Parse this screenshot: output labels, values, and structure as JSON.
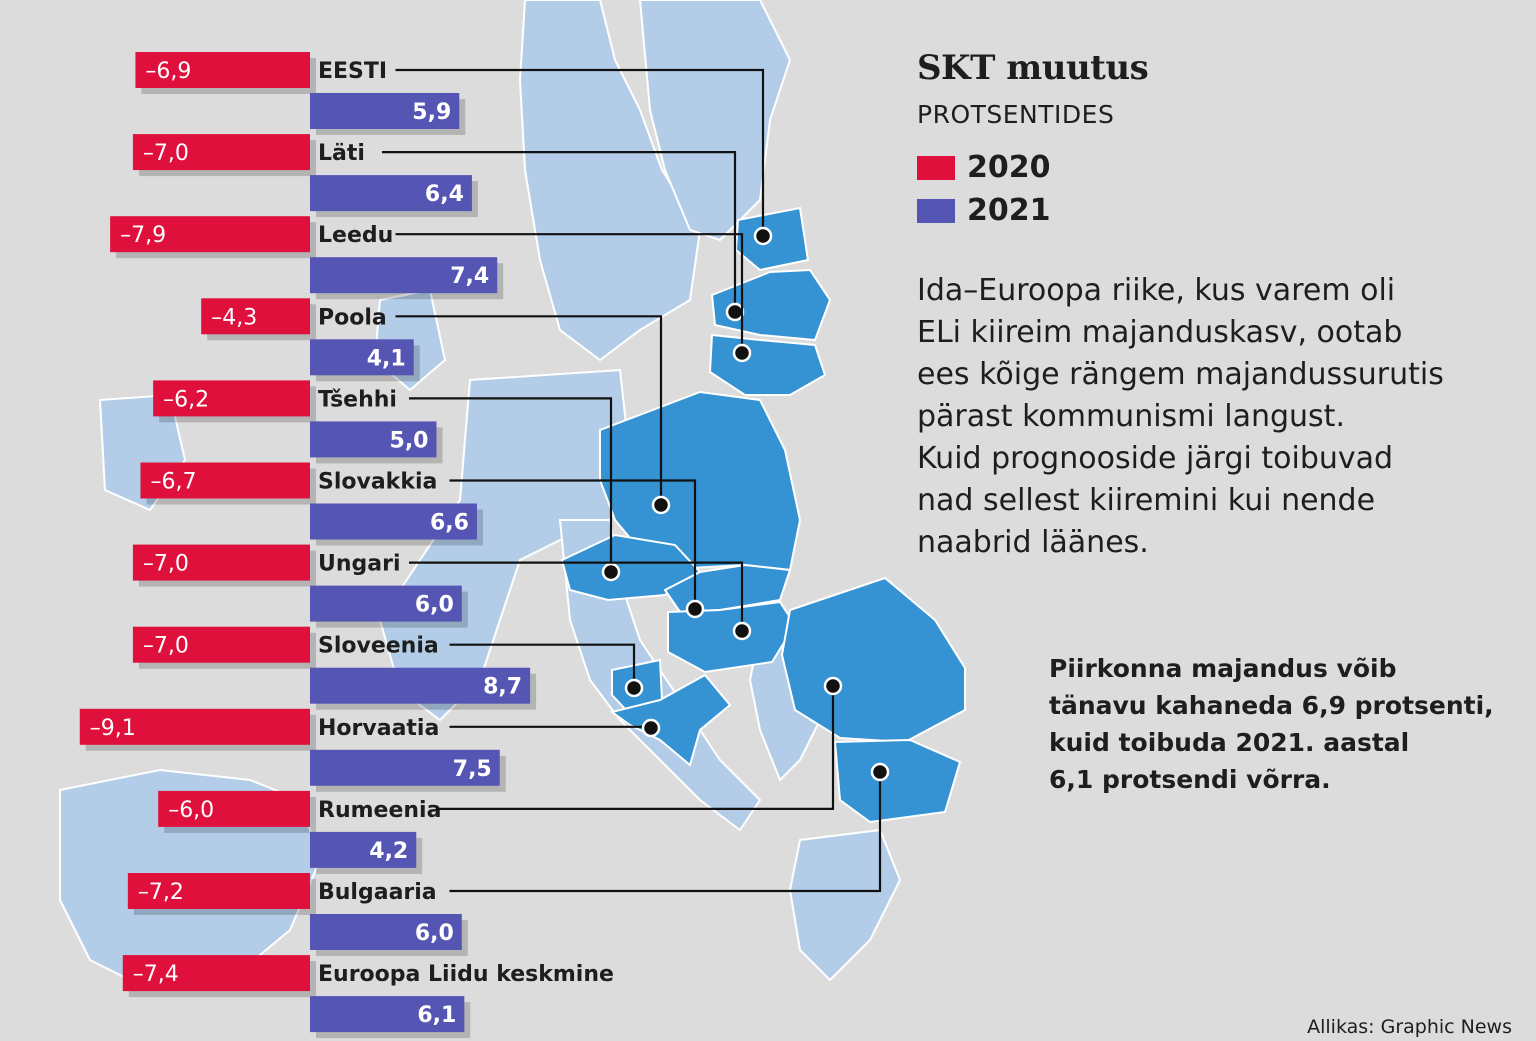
{
  "header": {
    "title": "SKT muutus",
    "subtitle": "PROTSENTIDES"
  },
  "legend": [
    {
      "label": "2020",
      "color": "#e0103d"
    },
    {
      "label": "2021",
      "color": "#5555b4"
    }
  ],
  "description": [
    "Ida–Euroopa riike, kus varem oli",
    "ELi kiireim majanduskasv, ootab",
    "ees kõige rängem majandussurutis",
    "pärast kommunismi langust.",
    "Kuid prognooside järgi toibuvad",
    "nad sellest kiiremini kui nende",
    "naabrid läänes."
  ],
  "note": [
    "Piirkonna majandus võib",
    "tänavu kahaneda 6,9 protsenti,",
    "kuid toibuda 2021. aastal",
    "6,1 protsendi võrra."
  ],
  "source": "Allikas: Graphic News",
  "colors": {
    "land": "#dcdcdc",
    "eu": "#b3cde9",
    "highlight": "#3593d3",
    "outline": "#ffffff",
    "bar2020": "#e0103d",
    "bar2021": "#5555b4",
    "leader": "#111111"
  },
  "chart_data": {
    "type": "bar",
    "title": "SKT muutus",
    "subtitle": "PROTSENTIDES",
    "categories": [
      "EESTI",
      "Läti",
      "Leedu",
      "Poola",
      "Tšehhi",
      "Slovakkia",
      "Ungari",
      "Sloveenia",
      "Horvaatia",
      "Rumeenia",
      "Bulgaaria",
      "Euroopa Liidu keskmine"
    ],
    "series": [
      {
        "name": "2020",
        "values": [
          -6.9,
          -7.0,
          -7.9,
          -4.3,
          -6.2,
          -6.7,
          -7.0,
          -7.0,
          -9.1,
          -6.0,
          -7.2,
          -7.4
        ],
        "labels": [
          "–6,9",
          "–7,0",
          "–7,9",
          "–4,3",
          "–6,2",
          "–6,7",
          "–7,0",
          "–7,0",
          "–9,1",
          "–6,0",
          "–7,2",
          "–7,4"
        ]
      },
      {
        "name": "2021",
        "values": [
          5.9,
          6.4,
          7.4,
          4.1,
          5.0,
          6.6,
          6.0,
          8.7,
          7.5,
          4.2,
          6.0,
          6.1
        ],
        "labels": [
          "5,9",
          "6,4",
          "7,4",
          "4,1",
          "5,0",
          "6,6",
          "6,0",
          "8,7",
          "7,5",
          "4,2",
          "6,0",
          "6,1"
        ]
      }
    ],
    "legend_position": "top-right",
    "grid": false
  }
}
